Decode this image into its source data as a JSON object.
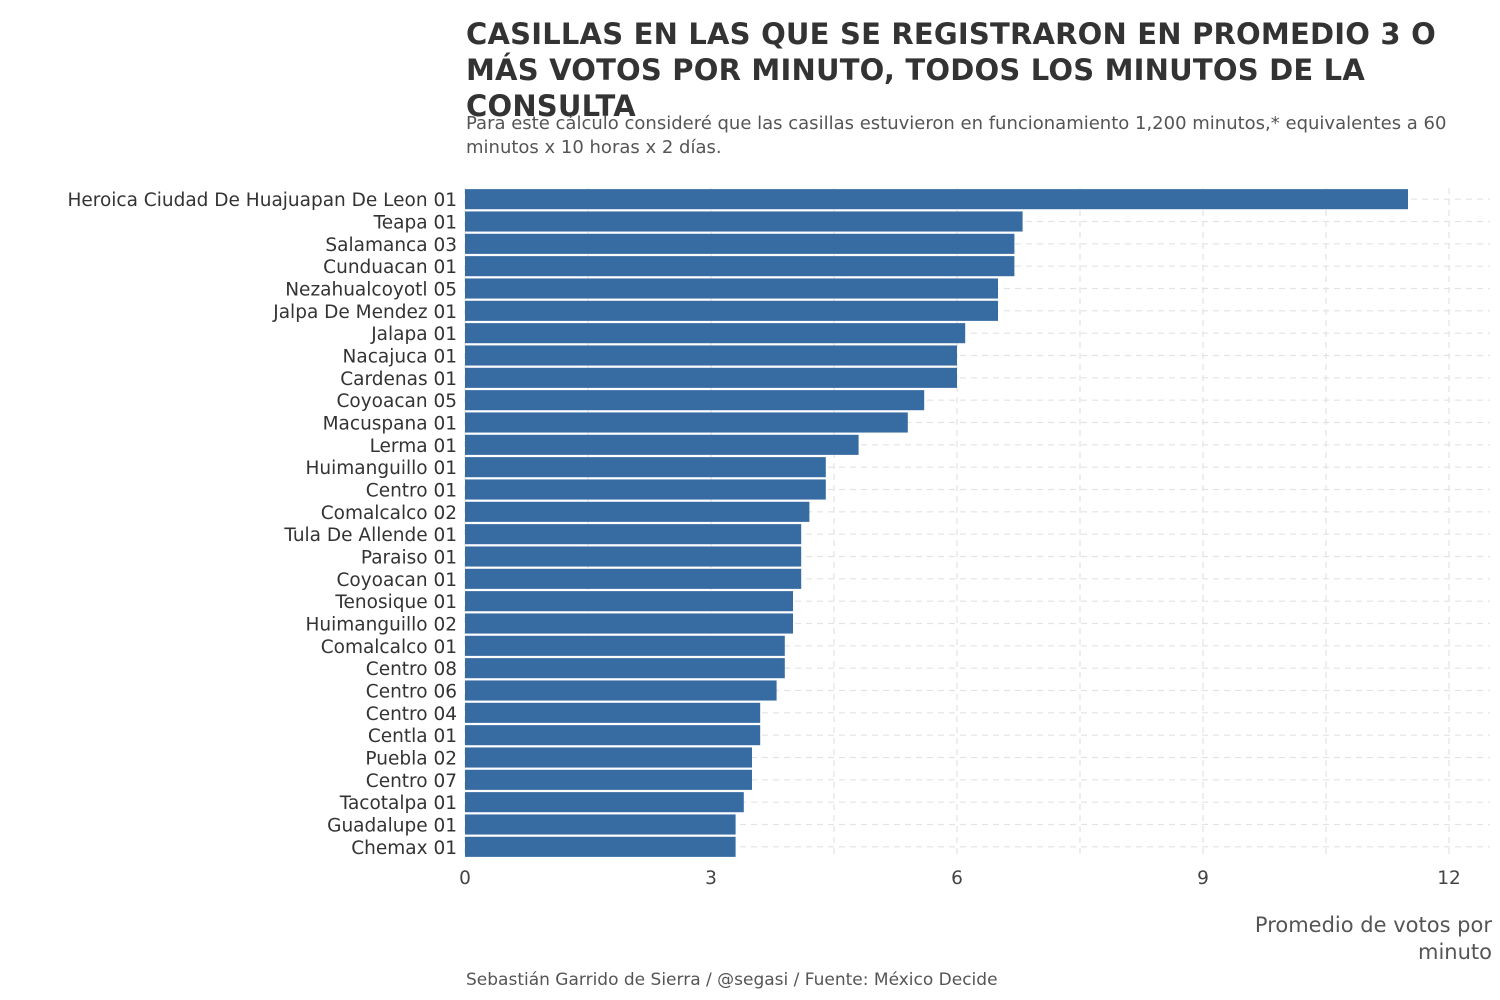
{
  "chart_data": {
    "type": "bar",
    "orientation": "horizontal",
    "title": "CASILLAS EN LAS QUE SE REGISTRARON EN PROMEDIO 3 O MÁS VOTOS POR MINUTO, TODOS LOS MINUTOS DE LA CONSULTA",
    "subtitle": "Para este cálculo consideré que las casillas estuvieron en funcionamiento 1,200 minutos,* equivalentes a 60 minutos x 10 horas x 2 días.",
    "xlabel": "Promedio de votos por minuto",
    "ylabel": "",
    "caption": "Sebastián Garrido de Sierra / @segasi / Fuente: México Decide",
    "xlim": [
      0,
      12.5
    ],
    "xticks": [
      0,
      3,
      6,
      9,
      12
    ],
    "grid": true,
    "bar_color": "#376ca3",
    "categories": [
      "Heroica Ciudad De Huajuapan De Leon 01",
      "Teapa 01",
      "Salamanca 03",
      "Cunduacan 01",
      "Nezahualcoyotl 05",
      "Jalpa De Mendez 01",
      "Jalapa 01",
      "Nacajuca 01",
      "Cardenas 01",
      "Coyoacan 05",
      "Macuspana 01",
      "Lerma 01",
      "Huimanguillo 01",
      "Centro 01",
      "Comalcalco 02",
      "Tula De Allende 01",
      "Paraiso 01",
      "Coyoacan 01",
      "Tenosique 01",
      "Huimanguillo 02",
      "Comalcalco 01",
      "Centro 08",
      "Centro 06",
      "Centro 04",
      "Centla 01",
      "Puebla 02",
      "Centro 07",
      "Tacotalpa 01",
      "Guadalupe 01",
      "Chemax 01"
    ],
    "values": [
      11.5,
      6.8,
      6.7,
      6.7,
      6.5,
      6.5,
      6.1,
      6.0,
      6.0,
      5.6,
      5.4,
      4.8,
      4.4,
      4.4,
      4.2,
      4.1,
      4.1,
      4.1,
      4.0,
      4.0,
      3.9,
      3.9,
      3.8,
      3.6,
      3.6,
      3.5,
      3.5,
      3.4,
      3.3,
      3.3
    ]
  }
}
